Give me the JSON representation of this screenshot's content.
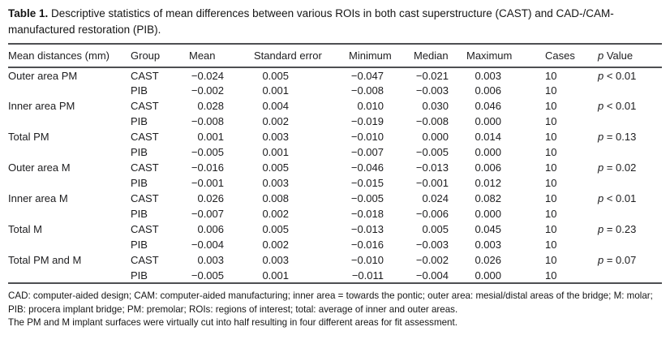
{
  "title": {
    "label": "Table 1.",
    "text": " Descriptive statistics of mean differences between various ROIs in both cast superstructure (CAST) and CAD-/CAM-manufactured restoration (PIB)."
  },
  "table": {
    "columns": {
      "roi": "Mean distances (mm)",
      "group": "Group",
      "mean": "Mean",
      "se": "Standard error",
      "min": "Minimum",
      "median": "Median",
      "max": "Maximum",
      "cases": "Cases",
      "p_italic": "p",
      "p_rest": " Value"
    },
    "rows": [
      [
        "Outer area PM",
        "CAST",
        "−0.024",
        "0.005",
        "−0.047",
        "−0.021",
        "0.003",
        "10",
        "p",
        "< 0.01"
      ],
      [
        "",
        "PIB",
        "−0.002",
        "0.001",
        "−0.008",
        "−0.003",
        "0.006",
        "10",
        "",
        ""
      ],
      [
        "Inner area PM",
        "CAST",
        "0.028",
        "0.004",
        "0.010",
        "0.030",
        "0.046",
        "10",
        "p",
        "< 0.01"
      ],
      [
        "",
        "PIB",
        "−0.008",
        "0.002",
        "−0.019",
        "−0.008",
        "0.000",
        "10",
        "",
        ""
      ],
      [
        "Total PM",
        "CAST",
        "0.001",
        "0.003",
        "−0.010",
        "0.000",
        "0.014",
        "10",
        "p",
        "= 0.13"
      ],
      [
        "",
        "PIB",
        "−0.005",
        "0.001",
        "−0.007",
        "−0.005",
        "0.000",
        "10",
        "",
        ""
      ],
      [
        "Outer area M",
        "CAST",
        "−0.016",
        "0.005",
        "−0.046",
        "−0.013",
        "0.006",
        "10",
        "p",
        "= 0.02"
      ],
      [
        "",
        "PIB",
        "−0.001",
        "0.003",
        "−0.015",
        "−0.001",
        "0.012",
        "10",
        "",
        ""
      ],
      [
        "Inner area M",
        "CAST",
        "0.026",
        "0.008",
        "−0.005",
        "0.024",
        "0.082",
        "10",
        "p",
        "< 0.01"
      ],
      [
        "",
        "PIB",
        "−0.007",
        "0.002",
        "−0.018",
        "−0.006",
        "0.000",
        "10",
        "",
        ""
      ],
      [
        "Total M",
        "CAST",
        "0.006",
        "0.005",
        "−0.013",
        "0.005",
        "0.045",
        "10",
        "p",
        "= 0.23"
      ],
      [
        "",
        "PIB",
        "−0.004",
        "0.002",
        "−0.016",
        "−0.003",
        "0.003",
        "10",
        "",
        ""
      ],
      [
        "Total PM and M",
        "CAST",
        "0.003",
        "0.003",
        "−0.010",
        "−0.002",
        "0.026",
        "10",
        "p",
        "= 0.07"
      ],
      [
        "",
        "PIB",
        "−0.005",
        "0.001",
        "−0.011",
        "−0.004",
        "0.000",
        "10",
        "",
        ""
      ]
    ]
  },
  "footnotes": [
    "CAD: computer-aided design; CAM: computer-aided manufacturing; inner area = towards the pontic; outer area: mesial/distal areas of the bridge; M: molar; PIB: procera implant bridge; PM: premolar; ROIs: regions of interest; total: average of inner and outer areas.",
    "The PM and M implant surfaces were virtually cut into half resulting in four different areas for fit assessment."
  ]
}
